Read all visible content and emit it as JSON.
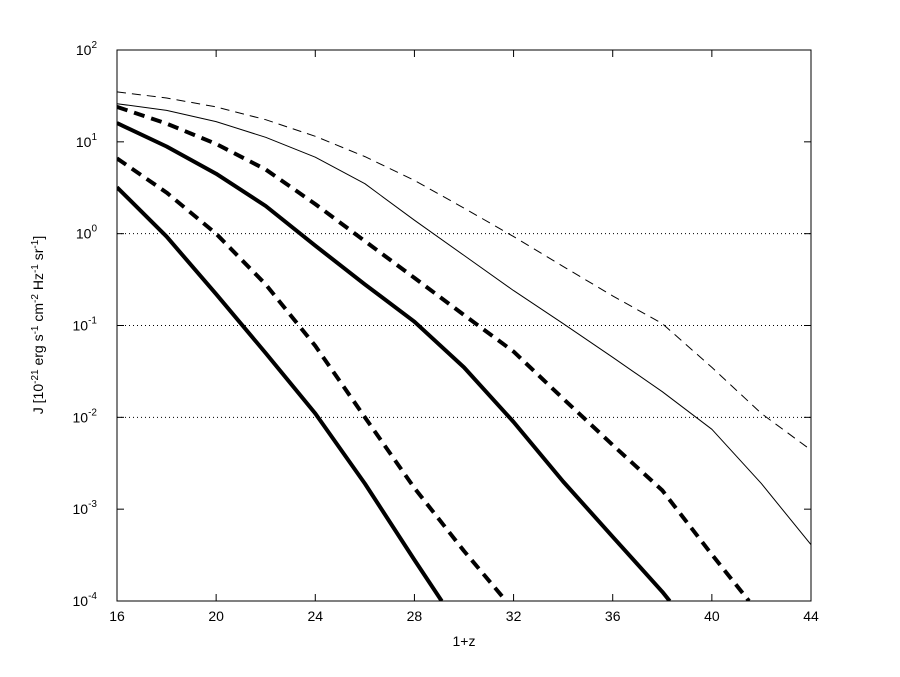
{
  "chart_data": {
    "type": "line",
    "xlabel": "1+z",
    "ylabel": [
      {
        "text": "J [10"
      },
      {
        "text": "-21",
        "sup": true
      },
      {
        "text": " erg s"
      },
      {
        "text": "-1",
        "sup": true
      },
      {
        "text": " cm"
      },
      {
        "text": "-2",
        "sup": true
      },
      {
        "text": " Hz"
      },
      {
        "text": "-1",
        "sup": true
      },
      {
        "text": " sr"
      },
      {
        "text": "-1",
        "sup": true
      },
      {
        "text": "]"
      }
    ],
    "log_y": true,
    "xlim": [
      16,
      44
    ],
    "ylim": [
      0.0001,
      100
    ],
    "xticks": [
      16,
      20,
      24,
      28,
      32,
      36,
      40,
      44
    ],
    "yticks": [
      {
        "value": 0.0001,
        "label": "10",
        "exponent": "-4"
      },
      {
        "value": 0.001,
        "label": "10",
        "exponent": "-3"
      },
      {
        "value": 0.01,
        "label": "10",
        "exponent": "-2"
      },
      {
        "value": 0.1,
        "label": "10",
        "exponent": "-1"
      },
      {
        "value": 1,
        "label": "10",
        "exponent": "0"
      },
      {
        "value": 10,
        "label": "10",
        "exponent": "1"
      },
      {
        "value": 100,
        "label": "10",
        "exponent": "2"
      }
    ],
    "hlines": [
      0.01,
      0.1,
      1
    ],
    "series": [
      {
        "color": "#000000",
        "dashed": true,
        "thick": false,
        "x": [
          16,
          18,
          20,
          22,
          24,
          26,
          28,
          30,
          32,
          34,
          36,
          38,
          40,
          42,
          44
        ],
        "values": [
          35,
          30,
          24,
          17.4,
          11.5,
          6.9,
          3.8,
          1.9,
          0.93,
          0.44,
          0.21,
          0.105,
          0.035,
          0.011,
          0.0044
        ]
      },
      {
        "color": "#000000",
        "dashed": false,
        "thick": false,
        "x": [
          16,
          18,
          20,
          22,
          24,
          26,
          28,
          30,
          32,
          34,
          36,
          38,
          40,
          42,
          44
        ],
        "values": [
          26,
          22,
          16.6,
          11.2,
          6.8,
          3.5,
          1.4,
          0.58,
          0.24,
          0.105,
          0.045,
          0.019,
          0.0074,
          0.0019,
          0.00041
        ]
      },
      {
        "color": "#000000",
        "dashed": true,
        "thick": true,
        "x": [
          16,
          18,
          20,
          22,
          24,
          26,
          28,
          30,
          32,
          34,
          36,
          38,
          40,
          41.5
        ],
        "values": [
          24,
          15.8,
          9.5,
          5,
          2.1,
          0.83,
          0.33,
          0.13,
          0.052,
          0.016,
          0.005,
          0.0016,
          0.00032,
          0.0001
        ]
      },
      {
        "color": "#000000",
        "dashed": false,
        "thick": true,
        "x": [
          16,
          18,
          20,
          22,
          24,
          26,
          28,
          30,
          32,
          34,
          36,
          38,
          38.3
        ],
        "values": [
          16,
          8.9,
          4.5,
          2,
          0.74,
          0.28,
          0.11,
          0.035,
          0.0089,
          0.002,
          0.0005,
          0.000126,
          0.0001
        ]
      },
      {
        "color": "#000000",
        "dashed": true,
        "thick": true,
        "x": [
          16,
          18,
          20,
          22,
          24,
          26,
          28,
          30,
          31.7
        ],
        "values": [
          6.6,
          2.8,
          1,
          0.28,
          0.06,
          0.01,
          0.0017,
          0.00035,
          0.0001
        ]
      },
      {
        "color": "#000000",
        "dashed": false,
        "thick": true,
        "x": [
          16,
          18,
          20,
          22,
          24,
          26,
          28,
          29.1
        ],
        "values": [
          3.2,
          0.93,
          0.22,
          0.05,
          0.011,
          0.0019,
          0.00028,
          0.0001
        ]
      }
    ]
  }
}
